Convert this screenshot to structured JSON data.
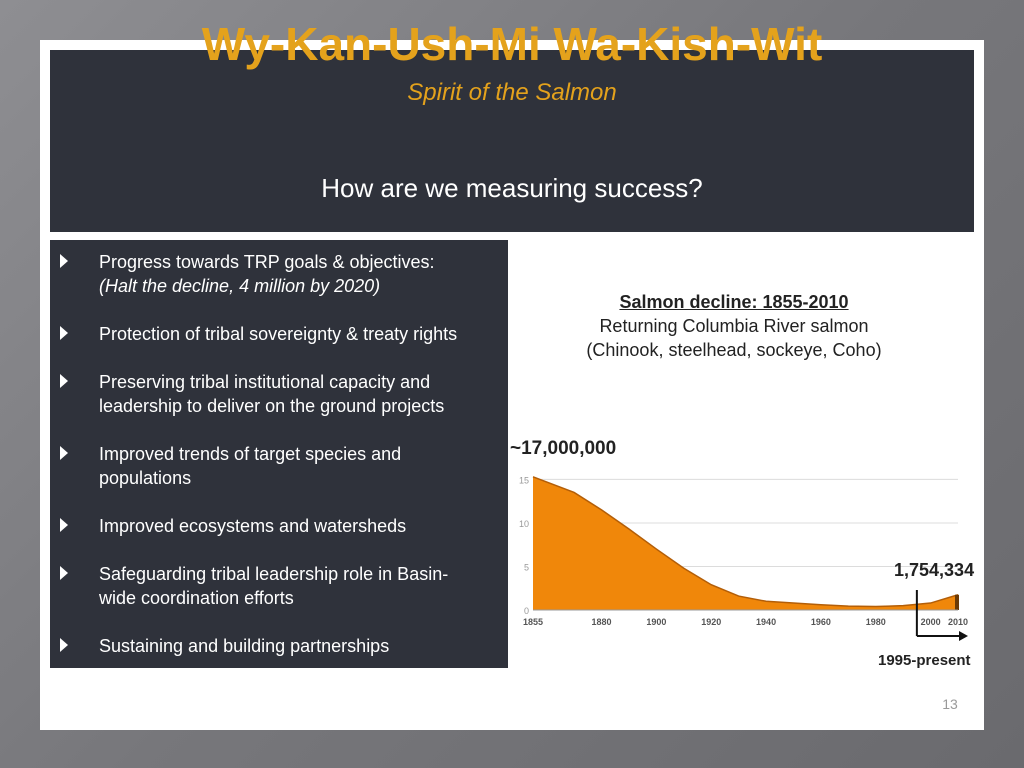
{
  "slide": {
    "title": "Wy-Kan-Ush-Mi Wa-Kish-Wit",
    "subtitle": "Spirit of the Salmon",
    "question": "How are we measuring success?",
    "number": "13"
  },
  "bullets": [
    {
      "line1": "Progress towards TRP goals & objectives:",
      "line2": "(Halt the decline, 4 million by 2020)"
    },
    {
      "line1": "Protection of tribal sovereignty & treaty rights",
      "line2": ""
    },
    {
      "line1": "Preserving tribal institutional capacity and",
      "line2": "leadership to deliver on the ground projects"
    },
    {
      "line1": "Improved trends of target species and",
      "line2": "populations"
    },
    {
      "line1": "Improved ecosystems and watersheds",
      "line2": ""
    },
    {
      "line1": "Safeguarding tribal leadership role in Basin-",
      "line2": "wide coordination efforts"
    },
    {
      "line1": "Sustaining and building partnerships",
      "line2": ""
    }
  ],
  "chart_text": {
    "heading": "Salmon decline: 1855-2010",
    "line2": "Returning Columbia River salmon",
    "line3": "(Chinook, steelhead, sockeye, Coho)",
    "peak_label": "~17,000,000",
    "recent_label": "1,754,334",
    "range_label": "1995-present"
  },
  "colors": {
    "accent": "#e4a21c",
    "panel": "#2f323b",
    "area_fill": "#f0870a",
    "area_stroke": "#b35e08"
  },
  "chart_data": {
    "type": "area",
    "title": "Salmon decline: 1855-2010",
    "x": [
      1855,
      1870,
      1880,
      1890,
      1900,
      1910,
      1920,
      1930,
      1940,
      1950,
      1960,
      1970,
      1980,
      1990,
      2000,
      2010
    ],
    "y": [
      15.3,
      13.5,
      11.5,
      9.3,
      7.0,
      4.8,
      2.9,
      1.6,
      1.0,
      0.8,
      0.6,
      0.45,
      0.4,
      0.5,
      0.8,
      1.75
    ],
    "x_ticks": [
      "1855",
      "1880",
      "1900",
      "1920",
      "1940",
      "1960",
      "1980",
      "2000",
      "2010"
    ],
    "y_ticks": [
      "0",
      "5",
      "10",
      "15"
    ],
    "xlim": [
      1855,
      2010
    ],
    "ylim": [
      0,
      17
    ],
    "grid": true,
    "ylabel": "",
    "xlabel": ""
  }
}
